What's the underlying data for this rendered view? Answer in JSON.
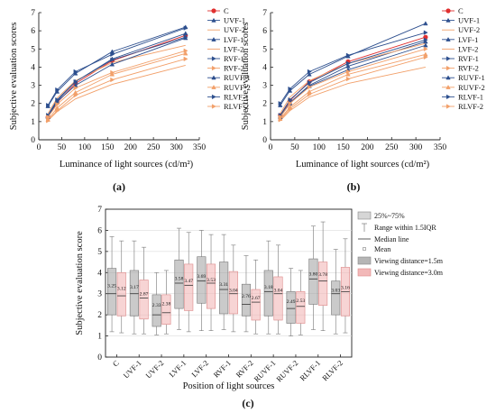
{
  "labels": {
    "a": "(a)",
    "b": "(b)",
    "c": "(c)"
  },
  "chart_data": [
    {
      "type": "line",
      "panel": "(a)",
      "xlabel": "Luminance of light sources (cd/m²)",
      "ylabel": "Subjective evaluation scores",
      "xlim": [
        0,
        350
      ],
      "ylim": [
        0,
        7
      ],
      "xticks": [
        "0",
        "50",
        "100",
        "150",
        "200",
        "250",
        "300",
        "350"
      ],
      "yticks": [
        "0",
        "1",
        "2",
        "3",
        "4",
        "5",
        "6",
        "7"
      ],
      "x": [
        20,
        40,
        80,
        160,
        320
      ],
      "legend_position": "right",
      "series": [
        {
          "name": "C",
          "color": "#e03030",
          "marker": "circle",
          "values": [
            1.25,
            2.05,
            3.1,
            4.35,
            5.75
          ]
        },
        {
          "name": "UVF-1",
          "color": "#2d4f8e",
          "marker": "triangle",
          "values": [
            1.3,
            2.15,
            3.2,
            4.45,
            5.85
          ]
        },
        {
          "name": "UVF-2",
          "color": "#f2a06a",
          "marker": "none",
          "values": [
            1.05,
            1.55,
            2.25,
            3.05,
            4.1
          ]
        },
        {
          "name": "LVF-1",
          "color": "#2d4f8e",
          "marker": "triangle",
          "values": [
            1.85,
            2.65,
            3.65,
            4.85,
            6.2
          ]
        },
        {
          "name": "LVF-2",
          "color": "#f2a06a",
          "marker": "none",
          "values": [
            1.45,
            2.3,
            3.25,
            4.25,
            5.2
          ]
        },
        {
          "name": "RVF-1",
          "color": "#2d4f8e",
          "marker": "triangle-right",
          "values": [
            1.35,
            2.2,
            3.2,
            4.4,
            5.65
          ]
        },
        {
          "name": "RVF-2",
          "color": "#f2a06a",
          "marker": "triangle-right",
          "values": [
            1.05,
            1.6,
            2.45,
            3.3,
            4.45
          ]
        },
        {
          "name": "RUVF-1",
          "color": "#2d4f8e",
          "marker": "triangle",
          "values": [
            1.25,
            2.1,
            3.0,
            4.15,
            5.6
          ]
        },
        {
          "name": "RUVF-2",
          "color": "#f2a06a",
          "marker": "triangle",
          "values": [
            1.1,
            1.75,
            2.6,
            3.6,
            4.75
          ]
        },
        {
          "name": "RLVF-1",
          "color": "#2d4f8e",
          "marker": "triangle-right",
          "values": [
            1.9,
            2.75,
            3.75,
            4.7,
            6.15
          ]
        },
        {
          "name": "RLVF-2",
          "color": "#f2a06a",
          "marker": "triangle-right",
          "values": [
            1.25,
            1.95,
            2.85,
            3.7,
            4.9
          ]
        }
      ]
    },
    {
      "type": "line",
      "panel": "(b)",
      "xlabel": "Luminance of light sources (cd/m²)",
      "ylabel": "Subjective evaluation scores",
      "xlim": [
        0,
        350
      ],
      "ylim": [
        0,
        7
      ],
      "xticks": [
        "0",
        "50",
        "100",
        "150",
        "200",
        "250",
        "300",
        "350"
      ],
      "yticks": [
        "0",
        "1",
        "2",
        "3",
        "4",
        "5",
        "6",
        "7"
      ],
      "x": [
        20,
        40,
        80,
        160,
        320
      ],
      "legend_position": "right",
      "series": [
        {
          "name": "C",
          "color": "#e03030",
          "marker": "circle",
          "values": [
            1.35,
            2.15,
            3.2,
            4.3,
            5.65
          ]
        },
        {
          "name": "UVF-1",
          "color": "#2d4f8e",
          "marker": "triangle",
          "values": [
            1.3,
            2.05,
            3.0,
            4.05,
            5.4
          ]
        },
        {
          "name": "UVF-2",
          "color": "#f2a06a",
          "marker": "none",
          "values": [
            1.05,
            1.6,
            2.35,
            3.1,
            4.0
          ]
        },
        {
          "name": "LVF-1",
          "color": "#2d4f8e",
          "marker": "triangle",
          "values": [
            1.9,
            2.7,
            3.6,
            4.6,
            6.4
          ]
        },
        {
          "name": "LVF-2",
          "color": "#f2a06a",
          "marker": "none",
          "values": [
            1.45,
            2.35,
            3.25,
            4.2,
            5.3
          ]
        },
        {
          "name": "RVF-1",
          "color": "#2d4f8e",
          "marker": "triangle-right",
          "values": [
            1.35,
            2.2,
            3.15,
            4.2,
            5.5
          ]
        },
        {
          "name": "RVF-2",
          "color": "#f2a06a",
          "marker": "triangle-right",
          "values": [
            1.1,
            1.7,
            2.5,
            3.35,
            4.55
          ]
        },
        {
          "name": "RUVF-1",
          "color": "#2d4f8e",
          "marker": "triangle",
          "values": [
            1.25,
            2.0,
            2.95,
            3.85,
            5.2
          ]
        },
        {
          "name": "RUVF-2",
          "color": "#f2a06a",
          "marker": "triangle",
          "values": [
            1.15,
            1.8,
            2.65,
            3.6,
            4.7
          ]
        },
        {
          "name": "RLVF-1",
          "color": "#2d4f8e",
          "marker": "triangle-right",
          "values": [
            2.0,
            2.8,
            3.75,
            4.65,
            5.9
          ]
        },
        {
          "name": "RLVF-2",
          "color": "#f2a06a",
          "marker": "triangle-right",
          "values": [
            1.25,
            2.0,
            2.9,
            3.75,
            5.0
          ]
        }
      ]
    },
    {
      "type": "box",
      "panel": "(c)",
      "xlabel": "Position of light sources",
      "ylabel": "Subjective evaluation score",
      "ylim": [
        0,
        7
      ],
      "yticks": [
        "0",
        "1",
        "2",
        "3",
        "4",
        "5",
        "6",
        "7"
      ],
      "categories": [
        "C",
        "UVF-1",
        "UVF-2",
        "LVF-1",
        "LVF-2",
        "RVF-1",
        "RVF-2",
        "RUVF-1",
        "RUVF-2",
        "RLVF-1",
        "RLVF-2"
      ],
      "legend": [
        "25%~75%",
        "Range within 1.5IQR",
        "Median line",
        "Mean",
        "Viewing distance=1.5m",
        "Viewing distance=3.0m"
      ],
      "legend_position": "top-right",
      "grid": true,
      "series": [
        {
          "name": "Viewing distance=1.5m",
          "color": "#9e9e9e",
          "means": [
            "3.25",
            "3.17",
            "2.33",
            "3.58",
            "3.69",
            "3.31",
            "2.76",
            "3.18",
            "2.49",
            "3.80",
            "3.03"
          ],
          "q1": [
            2.0,
            1.95,
            1.45,
            2.3,
            2.55,
            2.05,
            1.95,
            1.95,
            1.6,
            2.5,
            2.0
          ],
          "median": [
            3.0,
            3.0,
            2.0,
            3.5,
            3.6,
            3.2,
            2.5,
            3.1,
            2.3,
            3.7,
            3.0
          ],
          "q3": [
            4.2,
            4.1,
            2.95,
            4.6,
            4.75,
            4.5,
            3.45,
            4.1,
            3.1,
            4.65,
            3.6
          ],
          "whisker_low": [
            1.2,
            1.1,
            1.05,
            1.3,
            1.25,
            1.3,
            1.2,
            1.1,
            1.0,
            1.3,
            1.1
          ],
          "whisker_high": [
            5.7,
            5.5,
            4.0,
            6.1,
            6.0,
            5.8,
            4.8,
            5.5,
            4.2,
            6.2,
            5.1
          ]
        },
        {
          "name": "Viewing distance=3.0m",
          "color": "#f2b8b8",
          "means": [
            "3.12",
            "2.87",
            "2.38",
            "3.47",
            "3.53",
            "3.04",
            "2.67",
            "3.04",
            "2.53",
            "3.78",
            "3.16"
          ],
          "q1": [
            1.95,
            1.8,
            1.55,
            2.2,
            2.3,
            2.05,
            1.75,
            1.75,
            1.6,
            2.45,
            1.95
          ],
          "median": [
            2.9,
            2.8,
            2.1,
            3.4,
            3.5,
            3.0,
            2.6,
            3.0,
            2.4,
            3.6,
            3.1
          ],
          "q3": [
            4.0,
            3.65,
            2.95,
            4.4,
            4.4,
            4.05,
            3.2,
            3.8,
            3.1,
            4.5,
            4.25
          ],
          "whisker_low": [
            1.15,
            1.1,
            1.1,
            1.2,
            1.25,
            1.2,
            1.1,
            1.1,
            1.05,
            1.25,
            1.15
          ],
          "whisker_high": [
            5.5,
            5.2,
            4.1,
            5.9,
            5.8,
            5.3,
            4.6,
            5.3,
            4.1,
            6.4,
            5.6
          ]
        }
      ]
    }
  ]
}
